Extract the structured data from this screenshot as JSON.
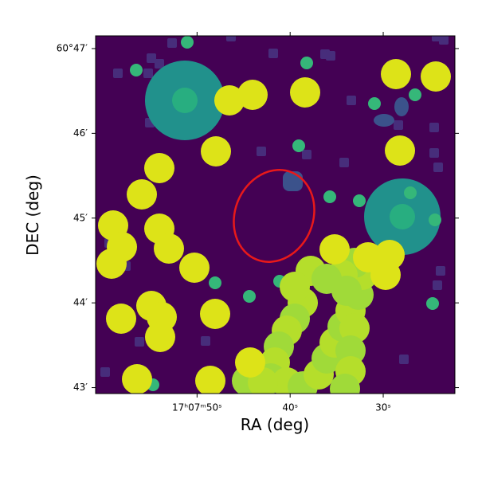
{
  "chart_data": {
    "type": "image",
    "xlabel": "RA (deg)",
    "ylabel": "DEC (deg)",
    "xlim": [
      60.9,
      22.3
    ],
    "ylim": [
      42.93,
      47.15
    ],
    "xticks": [
      {
        "value": 50,
        "label": "17ʰ07ᵐ50ˢ"
      },
      {
        "value": 40,
        "label": "40ˢ"
      },
      {
        "value": 30,
        "label": "30ˢ"
      }
    ],
    "yticks": [
      {
        "value": 47,
        "label": "60°47′"
      },
      {
        "value": 46,
        "label": "46′"
      },
      {
        "value": 45,
        "label": "45′"
      },
      {
        "value": 44,
        "label": "44′"
      },
      {
        "value": 43,
        "label": "43′"
      }
    ]
  }
}
